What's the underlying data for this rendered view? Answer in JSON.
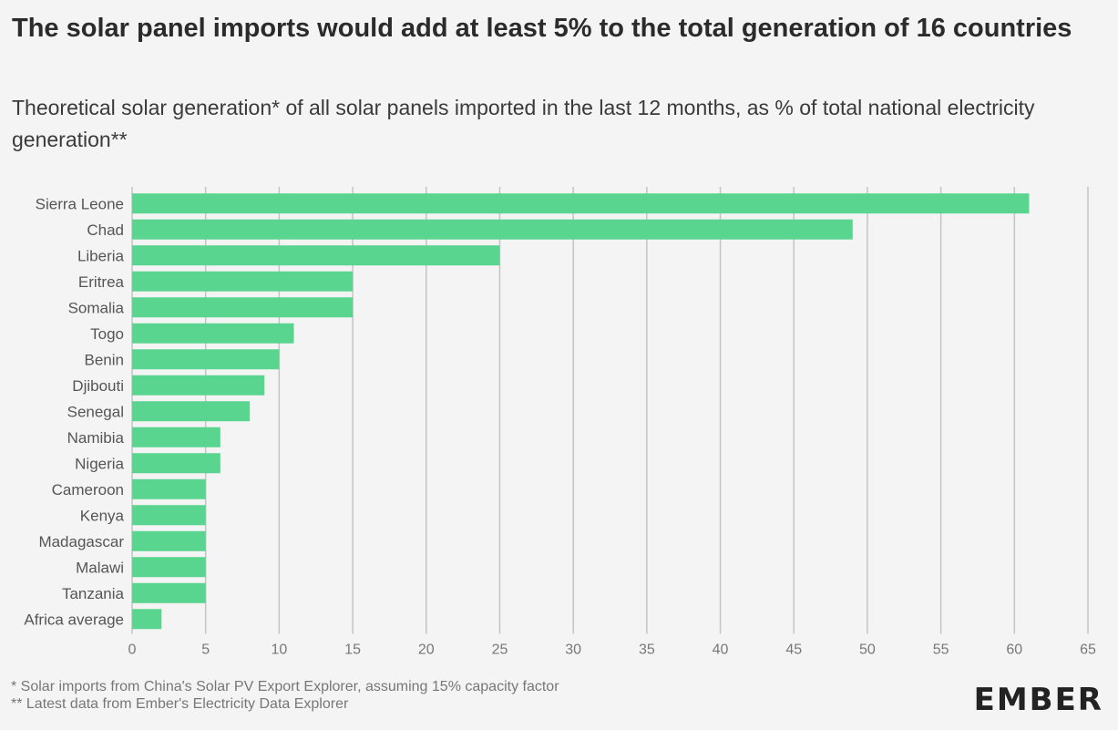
{
  "header": {
    "title": "The solar panel imports would add at least 5% to the total generation of 16 countries",
    "subtitle": "Theoretical solar generation* of all solar panels imported in the last 12 months, as % of total national electricity generation**"
  },
  "footnotes": {
    "line1": "* Solar imports from China's Solar PV Export Explorer, assuming 15% capacity factor",
    "line2": "** Latest data from Ember's Electricity Data Explorer"
  },
  "brand": {
    "logo_text": "EMBER"
  },
  "colors": {
    "bar": "#59d58f",
    "grid": "#c4c4c4",
    "label": "#555555",
    "tick": "#777777",
    "background": "#f4f4f4"
  },
  "chart_data": {
    "type": "bar",
    "orientation": "horizontal",
    "title": "The solar panel imports would add at least 5% to the total generation of 16 countries",
    "xlabel": "",
    "ylabel": "",
    "xlim": [
      0,
      65
    ],
    "ticks": [
      0,
      5,
      10,
      15,
      20,
      25,
      30,
      35,
      40,
      45,
      50,
      55,
      60,
      65
    ],
    "grid": true,
    "categories": [
      "Sierra Leone",
      "Chad",
      "Liberia",
      "Eritrea",
      "Somalia",
      "Togo",
      "Benin",
      "Djibouti",
      "Senegal",
      "Namibia",
      "Nigeria",
      "Cameroon",
      "Kenya",
      "Madagascar",
      "Malawi",
      "Tanzania",
      "Africa average"
    ],
    "values": [
      61,
      49,
      25,
      15,
      15,
      11,
      10,
      9,
      8,
      6,
      6,
      5,
      5,
      5,
      5,
      5,
      2
    ]
  }
}
